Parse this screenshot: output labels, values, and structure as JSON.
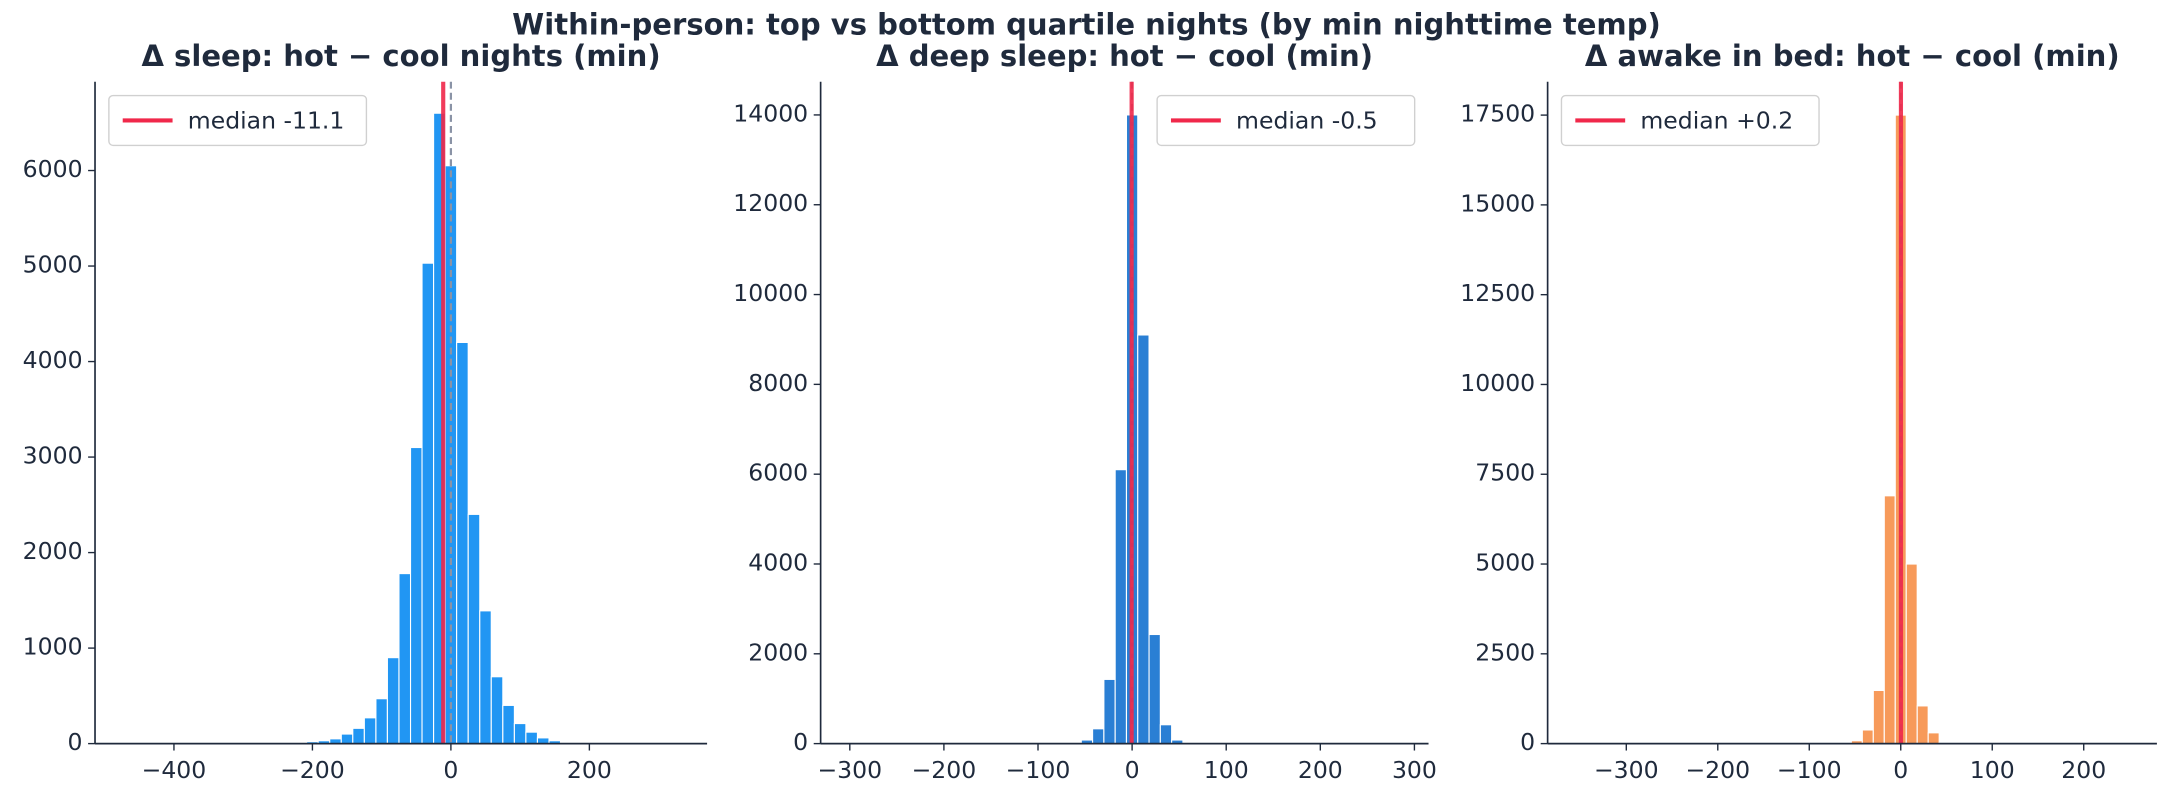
{
  "title": "Within-person: top vs bottom quartile nights (by min nighttime temp)",
  "chart_data": [
    {
      "type": "histogram",
      "title": "Δ sleep: hot − cool nights (min)",
      "bins": [
        -208.4,
        -191.7,
        -175,
        -158.3,
        -141.7,
        -125,
        -108.3,
        -91.7,
        -75,
        -58.3,
        -41.7,
        -25,
        -8.3,
        8.3,
        25,
        41.7,
        58.3,
        75,
        91.7,
        108.3,
        125,
        141.7,
        158.3,
        175
      ],
      "values": [
        20,
        30,
        50,
        100,
        160,
        270,
        470,
        900,
        1780,
        3100,
        5030,
        6600,
        6050,
        4200,
        2400,
        1390,
        700,
        400,
        210,
        120,
        60,
        30,
        10
      ],
      "color": "#2196f3",
      "xlim": [
        -514,
        370
      ],
      "ylim": [
        0,
        6930
      ],
      "xticks": [
        {
          "value": -400,
          "label": "−400"
        },
        {
          "value": -200,
          "label": "−200"
        },
        0,
        200
      ],
      "yticks": [
        0,
        1000,
        2000,
        3000,
        4000,
        5000,
        6000
      ],
      "median_line": {
        "value": -11.1,
        "label": "median -11.1",
        "color": "#f0284a"
      },
      "reference_line": 0,
      "legend": "upper left"
    },
    {
      "type": "histogram",
      "title": "Δ deep sleep: hot − cool (min)",
      "bins": [
        -54,
        -42,
        -30,
        -18,
        -6,
        6,
        18,
        30,
        42,
        54
      ],
      "values": [
        80,
        330,
        1430,
        6100,
        14000,
        9100,
        2430,
        420,
        80
      ],
      "color": "#2a7fd4",
      "xlim": [
        -331,
        315
      ],
      "ylim": [
        0,
        14740
      ],
      "xticks": [
        {
          "value": -300,
          "label": "−300"
        },
        {
          "value": -200,
          "label": "−200"
        },
        {
          "value": -100,
          "label": "−100"
        },
        0,
        100,
        200,
        300
      ],
      "yticks": [
        0,
        2000,
        4000,
        6000,
        8000,
        10000,
        12000,
        14000
      ],
      "median_line": {
        "value": -0.5,
        "label": "median -0.5",
        "color": "#f0284a"
      },
      "reference_line": 0,
      "legend": "upper right"
    },
    {
      "type": "histogram",
      "title": "Δ awake in bed: hot − cool (min)",
      "bins": [
        -54,
        -42,
        -30,
        -18,
        -6,
        6,
        18,
        30,
        42,
        54
      ],
      "values": [
        80,
        380,
        1480,
        6900,
        17500,
        5000,
        1050,
        300,
        30
      ],
      "color": "#f79a5a",
      "xlim": [
        -386,
        280
      ],
      "ylim": [
        0,
        18430
      ],
      "xticks": [
        {
          "value": -300,
          "label": "−300"
        },
        {
          "value": -200,
          "label": "−200"
        },
        {
          "value": -100,
          "label": "−100"
        },
        0,
        100,
        200
      ],
      "yticks": [
        0,
        2500,
        5000,
        7500,
        10000,
        12500,
        15000,
        17500
      ],
      "median_line": {
        "value": 0.2,
        "label": "median +0.2",
        "color": "#f0284a"
      },
      "reference_line": 0,
      "legend": "upper left"
    }
  ]
}
